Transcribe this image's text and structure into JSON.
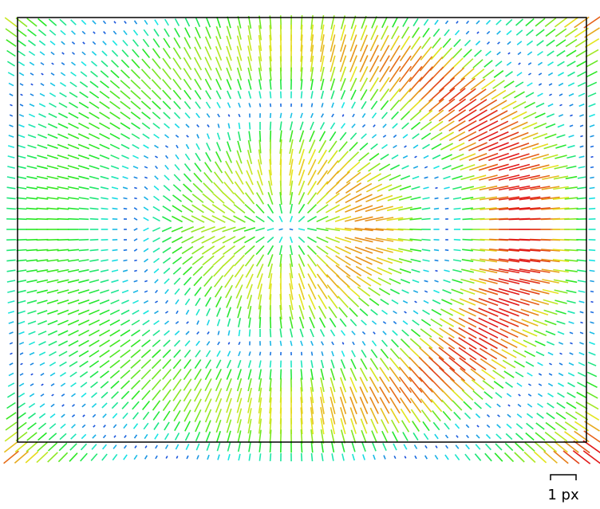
{
  "scale_bar": {
    "label": "1 px"
  }
}
